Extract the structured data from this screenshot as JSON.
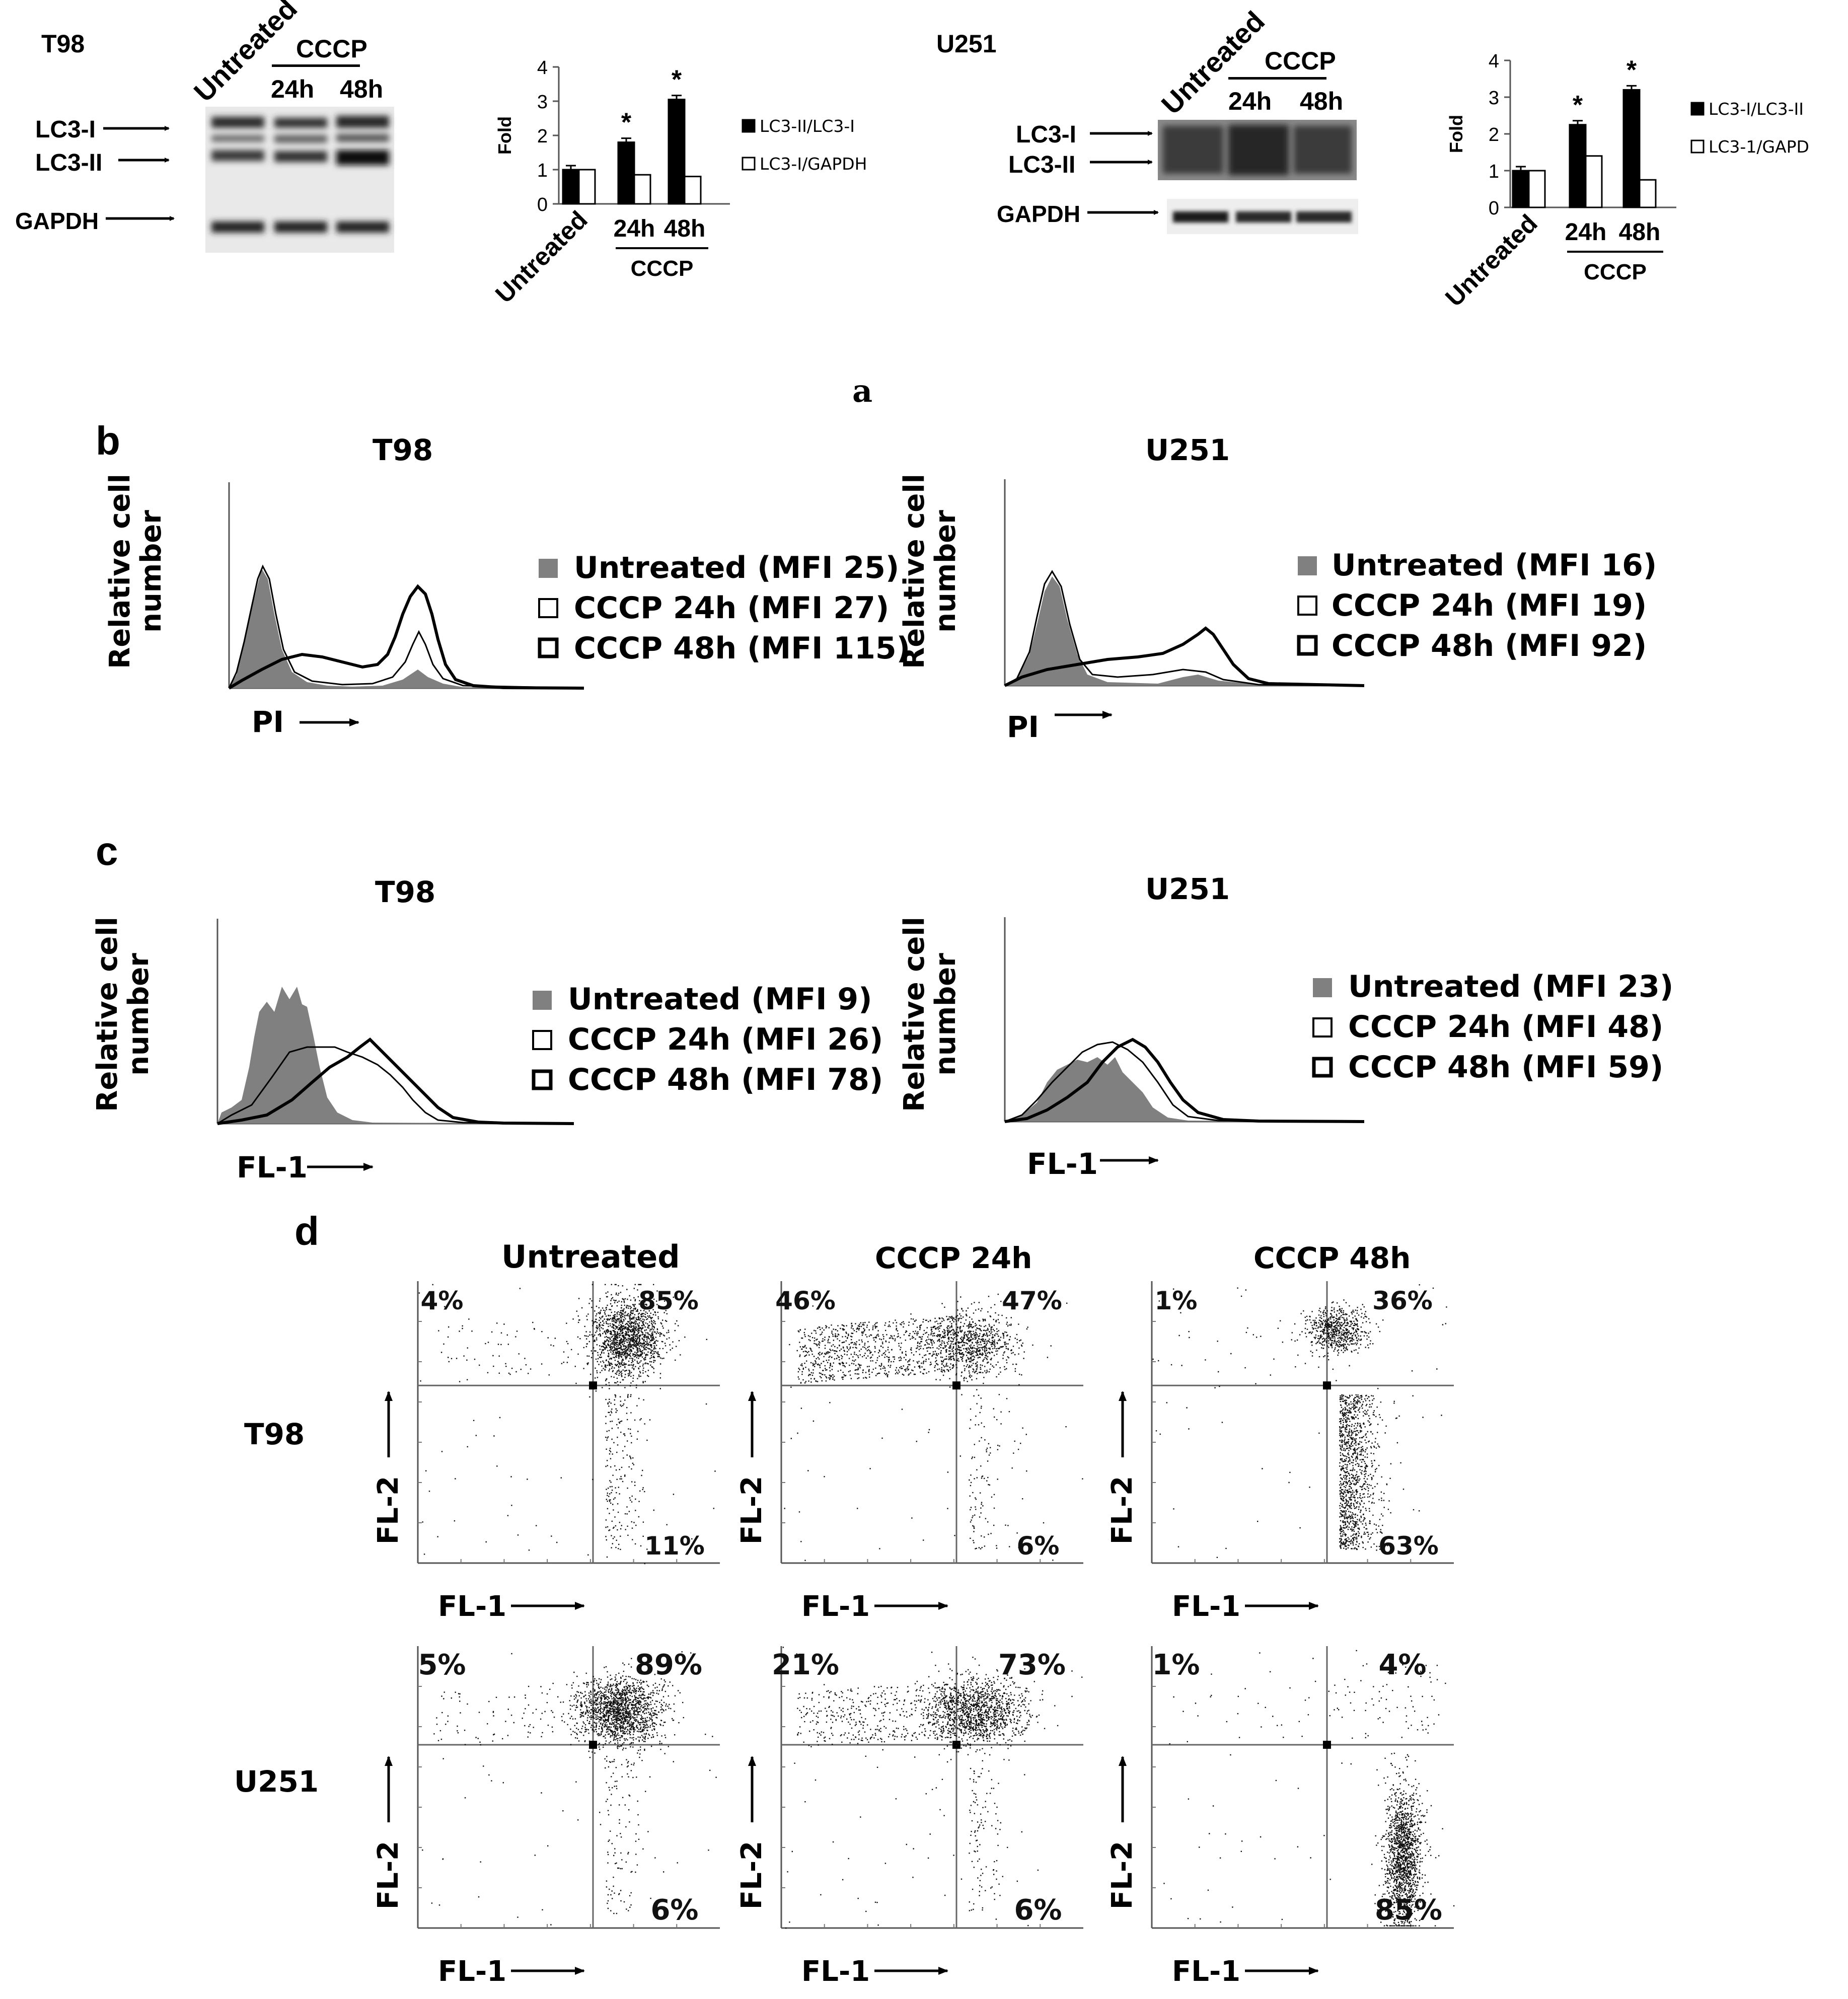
{
  "panel_a": {
    "letter": "a",
    "t98": {
      "cell_line": "T98",
      "blot_lane_untreated": "Untreated",
      "blot_cccp": "CCCP",
      "blot_lane_24h": "24h",
      "blot_lane_48h": "48h",
      "band_lc3i": "LC3-I",
      "band_lc3ii": "LC3-II",
      "band_gapdh": "GAPDH"
    },
    "u251": {
      "cell_line": "U251",
      "blot_lane_untreated": "Untreated",
      "blot_cccp": "CCCP",
      "blot_lane_24h": "24h",
      "blot_lane_48h": "48h",
      "band_lc3i": "LC3-I",
      "band_lc3ii": "LC3-II",
      "band_gapdh": "GAPDH"
    }
  },
  "panel_b": {
    "letter": "b",
    "t98": {
      "title": "T98",
      "ylabel_1": "Relative cell",
      "ylabel_2": "number",
      "xlabel": "PI",
      "legend": [
        "Untreated (MFI 25)",
        "CCCP 24h   (MFI 27)",
        "CCCP 48h   (MFI 115)"
      ]
    },
    "u251": {
      "title": "U251",
      "ylabel_1": "Relative cell",
      "ylabel_2": "number",
      "xlabel": "PI",
      "legend": [
        "Untreated (MFI 16)",
        "CCCP 24h   (MFI 19)",
        "CCCP 48h   (MFI 92)"
      ]
    }
  },
  "panel_c": {
    "letter": "c",
    "t98": {
      "title": "T98",
      "ylabel_1": "Relative cell",
      "ylabel_2": "number",
      "xlabel": "FL-1",
      "legend": [
        "Untreated (MFI 9)",
        "CCCP 24h (MFI 26)",
        "CCCP 48h (MFI 78)"
      ]
    },
    "u251": {
      "title": "U251",
      "ylabel_1": "Relative cell",
      "ylabel_2": "number",
      "xlabel": "FL-1",
      "legend": [
        "Untreated (MFI 23)",
        "CCCP 24h (MFI 48)",
        "CCCP 48h (MFI 59)"
      ]
    }
  },
  "panel_d": {
    "letter": "d",
    "col_titles": [
      "Untreated",
      "CCCP 24h",
      "CCCP 48h"
    ],
    "row_labels": [
      "T98",
      "U251"
    ],
    "xlabel": "FL-1",
    "ylabel": "FL-2",
    "quadrants": [
      [
        {
          "ul": "4%",
          "ur": "85%",
          "lr": "11%"
        },
        {
          "ul": "46%",
          "ur": "47%",
          "lr": "6%"
        },
        {
          "ul": "1%",
          "ur": "36%",
          "lr": "63%"
        }
      ],
      [
        {
          "ul": "5%",
          "ur": "89%",
          "lr": "6%"
        },
        {
          "ul": "21%",
          "ur": "73%",
          "lr": "6%"
        },
        {
          "ul": "1%",
          "ur": "4%",
          "lr": "85%"
        }
      ]
    ]
  },
  "chart_data": [
    {
      "type": "bar",
      "categories": [
        "Untreated",
        "24h",
        "48h"
      ],
      "group_label": "CCCP",
      "ylabel": "Fold",
      "ylim": [
        0,
        4
      ],
      "yticks": [
        0,
        1,
        2,
        3,
        4
      ],
      "series": [
        {
          "name": "LC3-II/LC3-I",
          "values": [
            1.0,
            1.8,
            3.05
          ],
          "color": "#000000"
        },
        {
          "name": "LC3-I/GAPDH",
          "values": [
            1.0,
            0.85,
            0.8
          ],
          "color": "#ffffff"
        }
      ],
      "significance": [
        "",
        "*",
        "*"
      ],
      "legend": "right"
    },
    {
      "type": "bar",
      "categories": [
        "Untreated",
        "24h",
        "48h"
      ],
      "group_label": "CCCP",
      "ylabel": "Fold",
      "ylim": [
        0,
        4
      ],
      "yticks": [
        0,
        1,
        2,
        3,
        4
      ],
      "series": [
        {
          "name": "LC3-I/LC3-II",
          "values": [
            1.0,
            2.25,
            3.2
          ],
          "color": "#000000"
        },
        {
          "name": "LC3-1/GAPD",
          "values": [
            1.0,
            1.4,
            0.75
          ],
          "color": "#ffffff"
        }
      ],
      "significance": [
        "",
        "*",
        "*"
      ],
      "legend": "right"
    }
  ]
}
